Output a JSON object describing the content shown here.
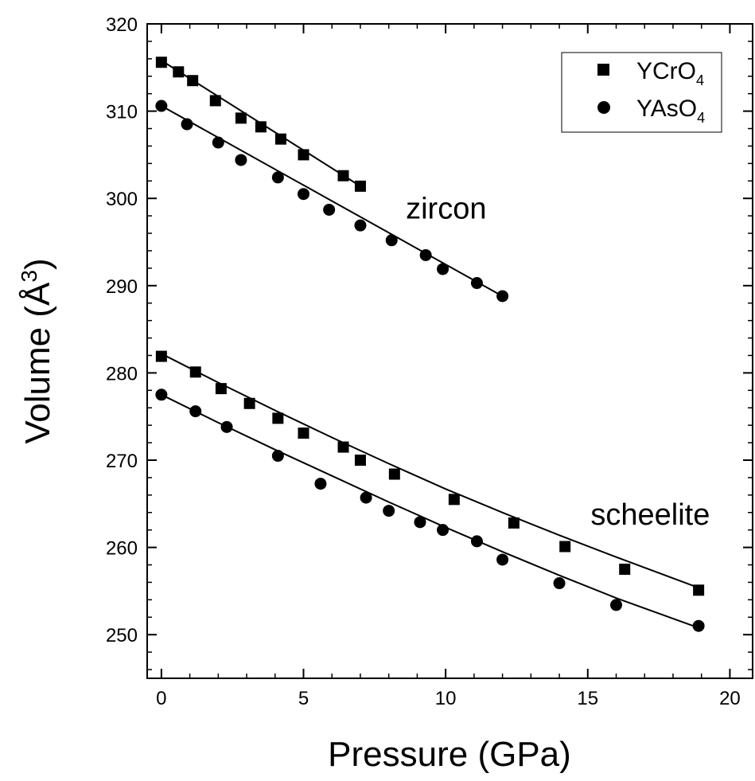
{
  "chart_data": {
    "type": "scatter",
    "xlabel": "Pressure (GPa)",
    "ylabel_main": "Volume (",
    "ylabel_unit": "Å",
    "ylabel_exp": "3",
    "ylabel_close": ")",
    "xlim": [
      -0.5,
      20.8
    ],
    "ylim": [
      245,
      320
    ],
    "xticks": [
      "0",
      "5",
      "10",
      "15",
      "20"
    ],
    "yticks": [
      "250",
      "260",
      "270",
      "280",
      "290",
      "300",
      "310",
      "320"
    ],
    "x_minor_step": 1,
    "y_minor_step": 2,
    "grid": false,
    "legend_position": "top-right",
    "legend": [
      {
        "name_main": "YCrO",
        "name_sub": "4",
        "marker": "square"
      },
      {
        "name_main": "YAsO",
        "name_sub": "4",
        "marker": "circle"
      }
    ],
    "annotations": [
      {
        "text": "zircon",
        "x": 8.6,
        "y": 297.7
      },
      {
        "text": "scheelite",
        "x": 15.1,
        "y": 262.6
      }
    ],
    "series": [
      {
        "name": "YCrO4",
        "phase": "zircon",
        "marker": "square",
        "x": [
          0.0,
          0.6,
          1.1,
          1.9,
          2.8,
          3.5,
          4.2,
          5.0,
          6.4,
          7.0
        ],
        "y": [
          315.6,
          314.5,
          313.5,
          311.2,
          309.2,
          308.2,
          306.8,
          305.0,
          302.6,
          301.4
        ],
        "fit": [
          [
            0.0,
            315.8
          ],
          [
            7.0,
            301.4
          ]
        ]
      },
      {
        "name": "YAsO4",
        "phase": "zircon",
        "marker": "circle",
        "x": [
          0.0,
          0.9,
          2.0,
          2.8,
          4.1,
          5.0,
          5.9,
          7.0,
          8.1,
          9.3,
          9.9,
          11.1,
          12.0
        ],
        "y": [
          310.6,
          308.5,
          306.4,
          304.4,
          302.4,
          300.5,
          298.7,
          296.9,
          295.2,
          293.5,
          291.9,
          290.3,
          288.8
        ],
        "fit": [
          [
            0.0,
            310.6
          ],
          [
            12.0,
            288.8
          ]
        ]
      },
      {
        "name": "YCrO4",
        "phase": "scheelite",
        "marker": "square",
        "x": [
          0.0,
          1.2,
          2.1,
          3.1,
          4.1,
          5.0,
          6.4,
          7.0,
          8.2,
          10.3,
          12.4,
          14.2,
          16.3,
          18.9
        ],
        "y": [
          281.9,
          280.1,
          278.2,
          276.5,
          274.8,
          273.1,
          271.5,
          270.0,
          268.4,
          265.5,
          262.8,
          260.1,
          257.5,
          255.1
        ],
        "fit": [
          [
            0.0,
            282.2
          ],
          [
            2.0,
            278.9
          ],
          [
            4.0,
            275.7
          ],
          [
            6.0,
            272.6
          ],
          [
            8.0,
            269.6
          ],
          [
            10.0,
            266.7
          ],
          [
            12.0,
            264.0
          ],
          [
            14.0,
            261.4
          ],
          [
            16.0,
            258.9
          ],
          [
            18.8,
            255.5
          ]
        ]
      },
      {
        "name": "YAsO4",
        "phase": "scheelite",
        "marker": "circle",
        "x": [
          0.0,
          1.2,
          2.3,
          4.1,
          5.6,
          7.2,
          8.0,
          9.1,
          9.9,
          11.1,
          12.0,
          14.0,
          16.0,
          18.9
        ],
        "y": [
          277.5,
          275.6,
          273.8,
          270.5,
          267.3,
          265.7,
          264.2,
          262.9,
          262.0,
          260.7,
          258.6,
          255.9,
          253.4,
          251.0
        ],
        "fit": [
          [
            0.0,
            277.5
          ],
          [
            2.0,
            274.3
          ],
          [
            4.0,
            271.2
          ],
          [
            6.0,
            268.2
          ],
          [
            8.0,
            265.2
          ],
          [
            10.0,
            262.3
          ],
          [
            12.0,
            259.5
          ],
          [
            14.0,
            256.8
          ],
          [
            16.0,
            254.2
          ],
          [
            18.8,
            250.9
          ]
        ]
      }
    ]
  }
}
